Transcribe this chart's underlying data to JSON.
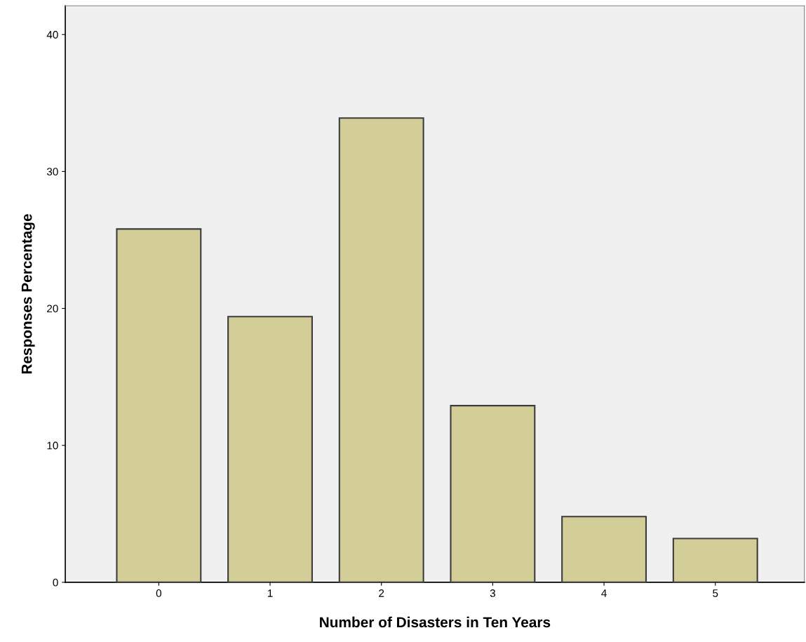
{
  "chart_data": {
    "type": "bar",
    "xlabel": "Number of Disasters in Ten Years",
    "ylabel": "Responses Percentage",
    "categories": [
      "0",
      "1",
      "2",
      "3",
      "4",
      "5"
    ],
    "values": [
      25.8,
      19.4,
      33.9,
      12.9,
      4.8,
      3.2
    ],
    "color": "#d3ce97",
    "ylim": [
      0,
      42.1
    ],
    "yticks": [
      0,
      10,
      20,
      30,
      40
    ],
    "grid": false,
    "legend": false
  }
}
